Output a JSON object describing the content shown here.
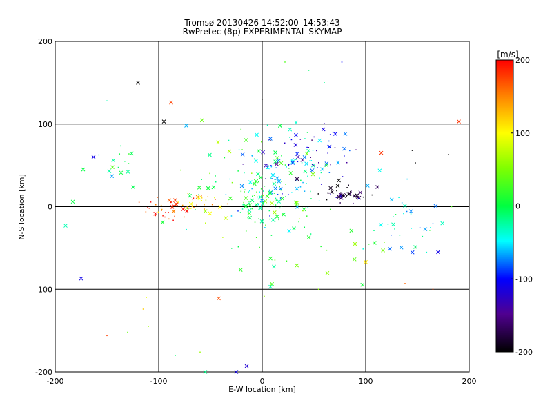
{
  "chart_data": {
    "type": "scatter",
    "title": "Tromsø 20130426 14:52:00–14:53:43",
    "subtitle": "RwPretec (8p) EXPERIMENTAL SKYMAP",
    "xlabel": "E-W location [km]",
    "ylabel": "N-S location [km]",
    "xlim": [
      -200,
      200
    ],
    "ylim": [
      -200,
      200
    ],
    "x_ticks": [
      "-200",
      "-100",
      "0",
      "100",
      "200"
    ],
    "y_ticks": [
      "-200",
      "-100",
      "0",
      "100",
      "200"
    ],
    "grid": "on",
    "colorbar": {
      "title": "[m/s]",
      "range": [
        -200,
        200
      ],
      "ticks": [
        "200",
        "100",
        "0",
        "-100",
        "-200"
      ],
      "colormap": "rainbow"
    },
    "markers": [
      "dot",
      "x"
    ],
    "clusters": [
      {
        "center": [
          -85,
          0
        ],
        "spread": [
          15,
          8
        ],
        "velocity": 175,
        "count": 40
      },
      {
        "center": [
          -60,
          3
        ],
        "spread": [
          10,
          6
        ],
        "velocity": 115,
        "count": 25
      },
      {
        "center": [
          0,
          5
        ],
        "spread": [
          15,
          15
        ],
        "velocity": 0,
        "count": 80
      },
      {
        "center": [
          20,
          35
        ],
        "spread": [
          25,
          25
        ],
        "velocity": -50,
        "count": 90
      },
      {
        "center": [
          45,
          65
        ],
        "spread": [
          25,
          15
        ],
        "velocity": -120,
        "count": 55
      },
      {
        "center": [
          75,
          15
        ],
        "spread": [
          15,
          6
        ],
        "velocity": -180,
        "count": 50
      },
      {
        "center": [
          140,
          -20
        ],
        "spread": [
          20,
          25
        ],
        "velocity": -40,
        "count": 35
      },
      {
        "center": [
          -140,
          55
        ],
        "spread": [
          15,
          15
        ],
        "velocity": -20,
        "count": 15
      },
      {
        "center": [
          -20,
          40
        ],
        "spread": [
          40,
          40
        ],
        "velocity": 10,
        "count": 45
      },
      {
        "center": [
          30,
          -30
        ],
        "spread": [
          45,
          35
        ],
        "velocity": 20,
        "count": 40
      }
    ],
    "points": [
      {
        "x": -120,
        "y": 150,
        "v": -200,
        "m": "x"
      },
      {
        "x": -95,
        "y": 103,
        "v": -200,
        "m": "x"
      },
      {
        "x": -88,
        "y": 126,
        "v": 175,
        "m": "x"
      },
      {
        "x": -175,
        "y": -87,
        "v": -110,
        "m": "x"
      },
      {
        "x": -190,
        "y": -23,
        "v": -30,
        "m": "x"
      },
      {
        "x": 190,
        "y": 103,
        "v": 180,
        "m": "x"
      },
      {
        "x": 77,
        "y": 175,
        "v": -100,
        "m": "dot"
      },
      {
        "x": 148,
        "y": -50,
        "v": 160,
        "m": "dot"
      },
      {
        "x": 170,
        "y": -55,
        "v": -110,
        "m": "x"
      },
      {
        "x": -25,
        "y": -200,
        "v": -110,
        "m": "x"
      },
      {
        "x": -15,
        "y": -193,
        "v": -120,
        "m": "x"
      },
      {
        "x": -55,
        "y": -200,
        "v": -20,
        "m": "x"
      },
      {
        "x": -42,
        "y": -111,
        "v": 170,
        "m": "x"
      },
      {
        "x": 8,
        "y": -97,
        "v": -30,
        "m": "x"
      },
      {
        "x": 100,
        "y": -67,
        "v": 110,
        "m": "x"
      },
      {
        "x": -150,
        "y": -156,
        "v": 175,
        "m": "dot"
      },
      {
        "x": -115,
        "y": -124,
        "v": 120,
        "m": "dot"
      },
      {
        "x": -112,
        "y": -110,
        "v": 90,
        "m": "dot"
      },
      {
        "x": -110,
        "y": -145,
        "v": 60,
        "m": "dot"
      },
      {
        "x": -130,
        "y": -152,
        "v": 40,
        "m": "dot"
      },
      {
        "x": -60,
        "y": -176,
        "v": 60,
        "m": "dot"
      },
      {
        "x": -84,
        "y": -180,
        "v": -10,
        "m": "dot"
      },
      {
        "x": 60,
        "y": 150,
        "v": -20,
        "m": "dot"
      },
      {
        "x": 45,
        "y": 165,
        "v": -10,
        "m": "dot"
      },
      {
        "x": 22,
        "y": 175,
        "v": 30,
        "m": "dot"
      },
      {
        "x": 0,
        "y": 130,
        "v": -200,
        "m": "dot"
      },
      {
        "x": -150,
        "y": 128,
        "v": -30,
        "m": "dot"
      },
      {
        "x": 148,
        "y": 53,
        "v": -200,
        "m": "dot"
      },
      {
        "x": 145,
        "y": 68,
        "v": -200,
        "m": "dot"
      },
      {
        "x": 180,
        "y": 63,
        "v": -200,
        "m": "dot"
      },
      {
        "x": 115,
        "y": 65,
        "v": 180,
        "m": "x"
      },
      {
        "x": 165,
        "y": -100,
        "v": 170,
        "m": "dot"
      },
      {
        "x": 138,
        "y": -93,
        "v": 160,
        "m": "dot"
      },
      {
        "x": 183,
        "y": 0,
        "v": 30,
        "m": "dot"
      },
      {
        "x": -183,
        "y": 6,
        "v": 0,
        "m": "x"
      },
      {
        "x": -173,
        "y": 45,
        "v": 0,
        "m": "x"
      },
      {
        "x": -163,
        "y": 60,
        "v": -110,
        "m": "x"
      }
    ]
  }
}
